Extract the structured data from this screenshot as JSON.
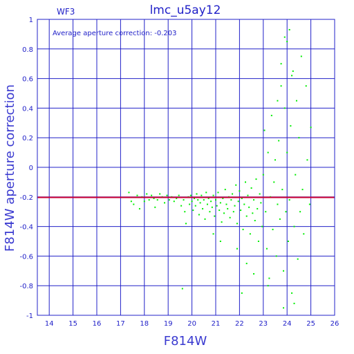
{
  "chart_data": {
    "type": "scatter",
    "title": "lmc_u5ay12",
    "chip_label": "WF3",
    "annotation": "Average aperture correction: -0.203",
    "xlabel": "F814W",
    "ylabel": "F814W aperture correction",
    "xlim": [
      13.5,
      26
    ],
    "ylim": [
      -1,
      1
    ],
    "x_ticks": [
      14,
      15,
      16,
      17,
      18,
      19,
      20,
      21,
      22,
      23,
      24,
      25,
      26
    ],
    "y_ticks": [
      -1,
      -0.8,
      -0.6,
      -0.4,
      -0.2,
      0,
      0.2,
      0.4,
      0.6,
      0.8,
      1
    ],
    "grid": true,
    "reference_line": {
      "y": -0.203,
      "color": "#cc0033"
    },
    "colors": {
      "axes": "#2020c8",
      "points": "#00ee00",
      "reference": "#cc0033"
    },
    "series": [
      {
        "values": [
          [
            17.35,
            -0.17
          ],
          [
            17.45,
            -0.23
          ],
          [
            17.55,
            -0.25
          ],
          [
            17.7,
            -0.19
          ],
          [
            17.8,
            -0.28
          ],
          [
            17.9,
            -0.2
          ],
          [
            18.0,
            -0.23
          ],
          [
            18.1,
            -0.18
          ],
          [
            18.2,
            -0.22
          ],
          [
            18.3,
            -0.19
          ],
          [
            18.4,
            -0.21
          ],
          [
            18.45,
            -0.27
          ],
          [
            18.55,
            -0.22
          ],
          [
            18.65,
            -0.18
          ],
          [
            18.75,
            -0.2
          ],
          [
            18.85,
            -0.24
          ],
          [
            18.95,
            -0.19
          ],
          [
            19.05,
            -0.22
          ],
          [
            19.15,
            -0.2
          ],
          [
            19.25,
            -0.23
          ],
          [
            19.35,
            -0.21
          ],
          [
            19.45,
            -0.19
          ],
          [
            19.55,
            -0.26
          ],
          [
            19.65,
            -0.22
          ],
          [
            19.7,
            -0.3
          ],
          [
            19.75,
            -0.38
          ],
          [
            19.6,
            -0.82
          ],
          [
            19.85,
            -0.2
          ],
          [
            19.9,
            -0.25
          ],
          [
            19.95,
            -0.19
          ],
          [
            20.0,
            -0.23
          ],
          [
            20.05,
            -0.29
          ],
          [
            20.1,
            -0.21
          ],
          [
            20.15,
            -0.26
          ],
          [
            20.2,
            -0.18
          ],
          [
            20.25,
            -0.22
          ],
          [
            20.3,
            -0.32
          ],
          [
            20.35,
            -0.24
          ],
          [
            20.4,
            -0.19
          ],
          [
            20.45,
            -0.28
          ],
          [
            20.5,
            -0.22
          ],
          [
            20.55,
            -0.35
          ],
          [
            20.6,
            -0.17
          ],
          [
            20.65,
            -0.25
          ],
          [
            20.7,
            -0.21
          ],
          [
            20.75,
            -0.3
          ],
          [
            20.8,
            -0.23
          ],
          [
            20.85,
            -0.27
          ],
          [
            20.9,
            -0.19
          ],
          [
            20.95,
            -0.33
          ],
          [
            21.0,
            -0.22
          ],
          [
            21.05,
            -0.26
          ],
          [
            21.1,
            -0.17
          ],
          [
            21.15,
            -0.29
          ],
          [
            21.2,
            -0.24
          ],
          [
            21.25,
            -0.37
          ],
          [
            21.3,
            -0.21
          ],
          [
            21.35,
            -0.31
          ],
          [
            21.4,
            -0.15
          ],
          [
            21.45,
            -0.25
          ],
          [
            21.5,
            -0.28
          ],
          [
            21.55,
            -0.2
          ],
          [
            21.6,
            -0.34
          ],
          [
            21.65,
            -0.22
          ],
          [
            21.7,
            -0.18
          ],
          [
            21.75,
            -0.3
          ],
          [
            21.8,
            -0.26
          ],
          [
            21.85,
            -0.12
          ],
          [
            21.9,
            -0.38
          ],
          [
            21.95,
            -0.23
          ],
          [
            22.0,
            -0.16
          ],
          [
            22.05,
            -0.29
          ],
          [
            22.1,
            -0.21
          ],
          [
            22.15,
            -0.42
          ],
          [
            22.2,
            -0.25
          ],
          [
            22.25,
            -0.1
          ],
          [
            22.3,
            -0.33
          ],
          [
            22.35,
            -0.19
          ],
          [
            22.4,
            -0.27
          ],
          [
            22.45,
            -0.45
          ],
          [
            22.5,
            -0.14
          ],
          [
            22.55,
            -0.31
          ],
          [
            22.6,
            -0.22
          ],
          [
            22.65,
            -0.36
          ],
          [
            22.7,
            -0.08
          ],
          [
            22.75,
            -0.28
          ],
          [
            22.8,
            -0.5
          ],
          [
            22.85,
            -0.18
          ],
          [
            22.9,
            -0.24
          ],
          [
            22.95,
            -0.4
          ],
          [
            21.2,
            -0.5
          ],
          [
            21.9,
            -0.55
          ],
          [
            22.3,
            -0.65
          ],
          [
            22.6,
            -0.72
          ],
          [
            22.1,
            -0.85
          ],
          [
            20.9,
            -0.45
          ],
          [
            23.0,
            -0.05
          ],
          [
            23.05,
            0.25
          ],
          [
            23.1,
            -0.3
          ],
          [
            23.15,
            -0.55
          ],
          [
            23.2,
            0.1
          ],
          [
            23.25,
            -0.75
          ],
          [
            23.3,
            -0.2
          ],
          [
            23.35,
            0.35
          ],
          [
            23.4,
            -0.42
          ],
          [
            23.45,
            -0.1
          ],
          [
            23.5,
            0.05
          ],
          [
            23.55,
            -0.6
          ],
          [
            23.6,
            -0.25
          ],
          [
            23.65,
            0.18
          ],
          [
            23.7,
            -0.35
          ],
          [
            23.75,
            0.55
          ],
          [
            23.8,
            -0.15
          ],
          [
            23.85,
            -0.7
          ],
          [
            23.9,
            0.4
          ],
          [
            23.95,
            -0.3
          ],
          [
            24.0,
            0.1
          ],
          [
            24.05,
            -0.5
          ],
          [
            24.1,
            -0.22
          ],
          [
            24.15,
            0.28
          ],
          [
            24.2,
            -0.85
          ],
          [
            24.25,
            0.65
          ],
          [
            24.3,
            -0.4
          ],
          [
            24.35,
            -0.05
          ],
          [
            24.4,
            0.45
          ],
          [
            24.45,
            -0.62
          ],
          [
            24.5,
            0.2
          ],
          [
            24.55,
            -0.3
          ],
          [
            24.6,
            0.75
          ],
          [
            24.65,
            -0.15
          ],
          [
            24.7,
            -0.45
          ],
          [
            24.8,
            0.55
          ],
          [
            24.85,
            0.05
          ],
          [
            24.95,
            -0.25
          ],
          [
            25.0,
            0.27
          ],
          [
            24.1,
            0.93
          ],
          [
            23.9,
            0.88
          ],
          [
            23.75,
            0.7
          ],
          [
            24.3,
            -0.92
          ],
          [
            23.2,
            -0.8
          ],
          [
            23.85,
            -0.95
          ],
          [
            24.0,
            0.85
          ],
          [
            23.6,
            0.45
          ],
          [
            24.2,
            0.62
          ]
        ]
      }
    ]
  }
}
